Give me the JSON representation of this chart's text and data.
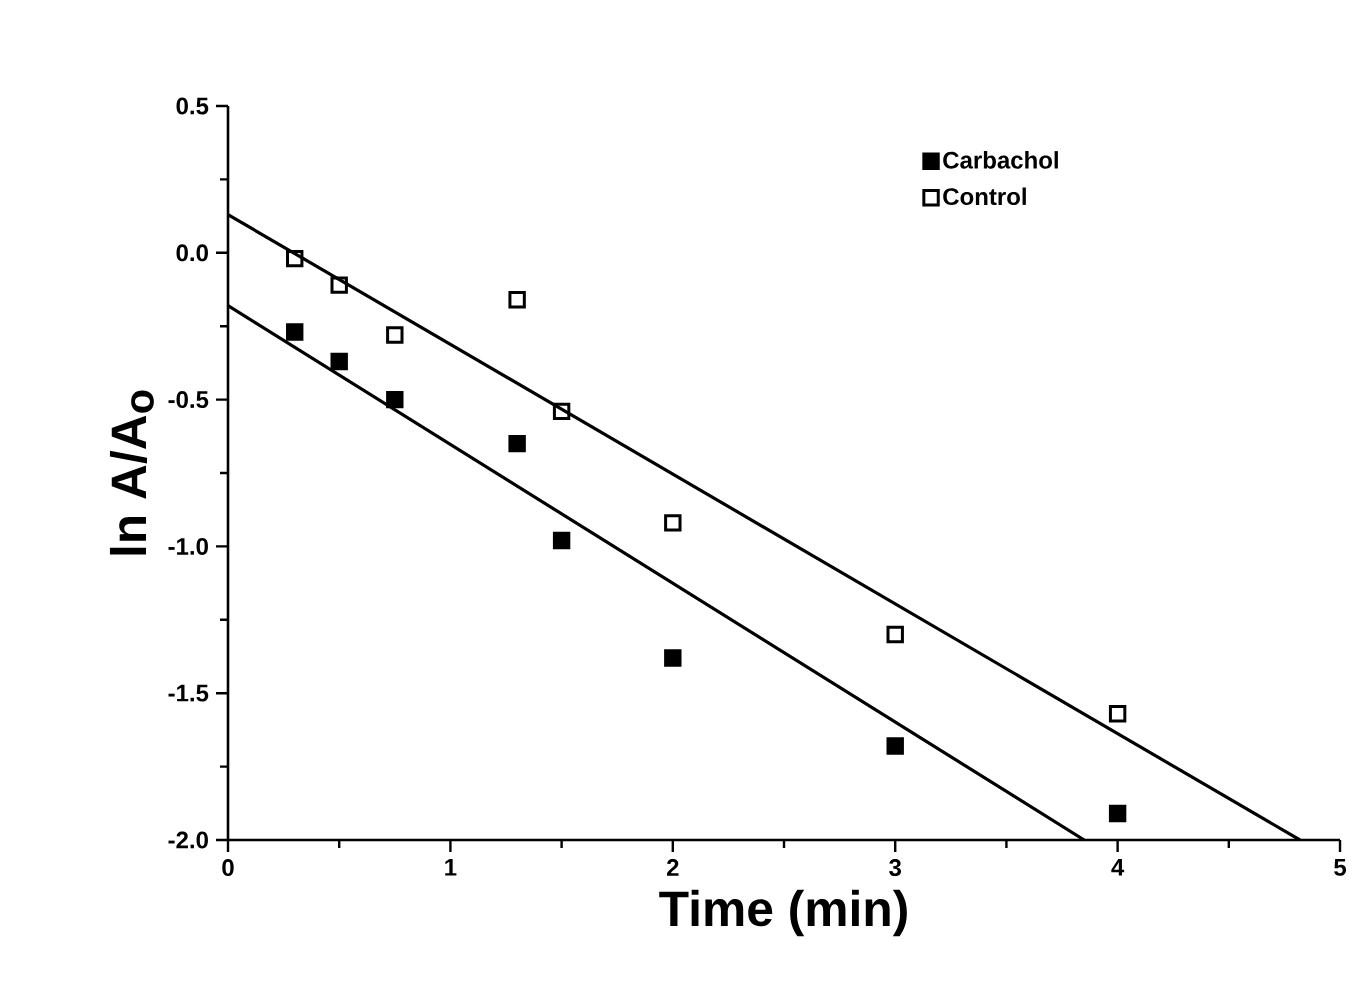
{
  "chart_data": {
    "type": "scatter",
    "xlabel": "Time  (min)",
    "ylabel": "ln  A/A$_{o}$",
    "xlim": [
      0,
      5
    ],
    "ylim": [
      -2.0,
      0.5
    ],
    "xticks": [
      0,
      1,
      2,
      3,
      4,
      5
    ],
    "yticks": [
      {
        "value": 0.5,
        "label": "0.5"
      },
      {
        "value": 0,
        "label": "0.0"
      },
      {
        "value": -0.5,
        "label": "-0.5"
      },
      {
        "value": -1,
        "label": "-1.0"
      },
      {
        "value": -1.5,
        "label": "-1.5"
      },
      {
        "value": -2,
        "label": "-2.0"
      }
    ],
    "legend": "top right",
    "grid": false,
    "series": [
      {
        "name": "Carbachol",
        "color": "#000000",
        "marker": "square*",
        "x": [
          0.3,
          0.5,
          0.75,
          1.3,
          1.5,
          2,
          3,
          4
        ],
        "values": [
          -0.27,
          -0.37,
          -0.5,
          -0.65,
          -0.98,
          -1.38,
          -1.68,
          -1.91
        ]
      },
      {
        "name": "Control",
        "color": "#000000",
        "marker": "square",
        "x": [
          0.3,
          0.5,
          0.75,
          1.3,
          1.5,
          2,
          3,
          4
        ],
        "values": [
          -0.02,
          -0.11,
          -0.28,
          -0.16,
          -0.54,
          -0.92,
          -1.3,
          -1.57
        ]
      },
      {
        "type": "line",
        "marker": "none",
        "color": "#000000",
        "x": [
          0,
          4.82
        ],
        "values": [
          0.13,
          -2.0
        ]
      },
      {
        "type": "line",
        "marker": "none",
        "color": "#000000",
        "x": [
          0,
          3.85
        ],
        "values": [
          -0.18,
          -2.0
        ]
      }
    ]
  }
}
